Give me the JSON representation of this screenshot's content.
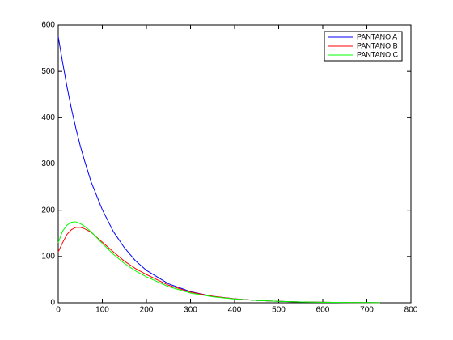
{
  "chart_data": {
    "type": "line",
    "x": [
      0,
      10,
      20,
      30,
      40,
      50,
      60,
      75,
      100,
      125,
      150,
      175,
      200,
      250,
      300,
      350,
      400,
      450,
      500,
      550,
      600,
      650,
      700,
      730
    ],
    "series": [
      {
        "name": "PANTANO A",
        "color": "#0000ff",
        "values": [
          575,
          519,
          466,
          419,
          377,
          339,
          306,
          260,
          201,
          154,
          119,
          91,
          70,
          41,
          24,
          14,
          8.5,
          5,
          3,
          1.8,
          1,
          0.6,
          0.4,
          0.3
        ]
      },
      {
        "name": "PANTANO B",
        "color": "#ff0000",
        "values": [
          110,
          130,
          148,
          158,
          163,
          163,
          160,
          152,
          131,
          110,
          90,
          74,
          61,
          38,
          23,
          14,
          8.5,
          5,
          3,
          1.8,
          1,
          0.6,
          0.4,
          0.3
        ]
      },
      {
        "name": "PANTANO C",
        "color": "#00ff00",
        "values": [
          130,
          155,
          168,
          174,
          175,
          171,
          165,
          153,
          128,
          105,
          85,
          69,
          56,
          35,
          21,
          13,
          8,
          5,
          3,
          1.8,
          1,
          0.6,
          0.4,
          0.3
        ]
      }
    ],
    "xlim": [
      0,
      800
    ],
    "xticks": [
      0,
      100,
      200,
      300,
      400,
      500,
      600,
      700,
      800
    ],
    "ylim": [
      0,
      600
    ],
    "yticks": [
      0,
      100,
      200,
      300,
      400,
      500,
      600
    ],
    "grid": false,
    "legend": "upper-right"
  }
}
